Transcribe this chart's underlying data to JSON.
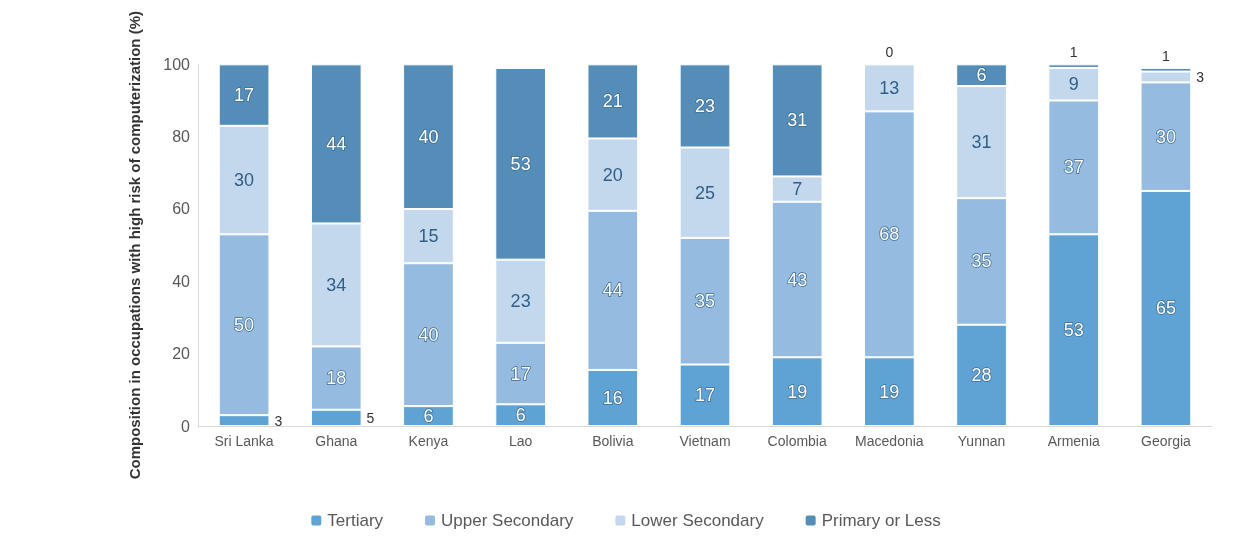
{
  "chart_data": {
    "type": "bar",
    "stacked": true,
    "ylabel": "Composition in occupations with high risk of computerization (%)",
    "categories": [
      "Sri Lanka",
      "Ghana",
      "Kenya",
      "Lao",
      "Bolivia",
      "Vietnam",
      "Colombia",
      "Macedonia",
      "Yunnan",
      "Armenia",
      "Georgia"
    ],
    "series": [
      {
        "name": "Tertiary",
        "color": "#5fa2d4",
        "values": [
          3,
          4.5,
          5.5,
          6,
          15.5,
          17,
          19,
          19,
          28,
          53,
          65
        ],
        "value_labels": [
          "3",
          "5",
          "6",
          "6",
          "16",
          "17",
          "19",
          "19",
          "28",
          "53",
          "65"
        ]
      },
      {
        "name": "Upper Secondary",
        "color": "#95bbe0",
        "values": [
          50,
          17.5,
          39.5,
          17,
          44,
          35,
          43,
          68,
          35,
          37,
          30
        ],
        "value_labels": [
          "50",
          "18",
          "40",
          "17",
          "44",
          "35",
          "43",
          "68",
          "35",
          "37",
          "30"
        ]
      },
      {
        "name": "Lower Secondary",
        "color": "#c3d8ed",
        "values": [
          30,
          34,
          15,
          23,
          20,
          25,
          7,
          13,
          31,
          9,
          3
        ],
        "value_labels": [
          "30",
          "34",
          "15",
          "23",
          "20",
          "25",
          "7",
          "13",
          "31",
          "9",
          "3"
        ]
      },
      {
        "name": "Primary or Less",
        "color": "#548db8",
        "values": [
          17,
          44,
          40,
          53,
          20.5,
          23,
          31,
          0,
          6,
          1,
          1
        ],
        "value_labels": [
          "17",
          "44",
          "40",
          "53",
          "21",
          "23",
          "31",
          "0",
          "6",
          "1",
          "1"
        ]
      }
    ],
    "ylim": [
      0,
      100
    ],
    "yticks": [
      0,
      20,
      40,
      60,
      80,
      100
    ],
    "legend": "bottom"
  }
}
